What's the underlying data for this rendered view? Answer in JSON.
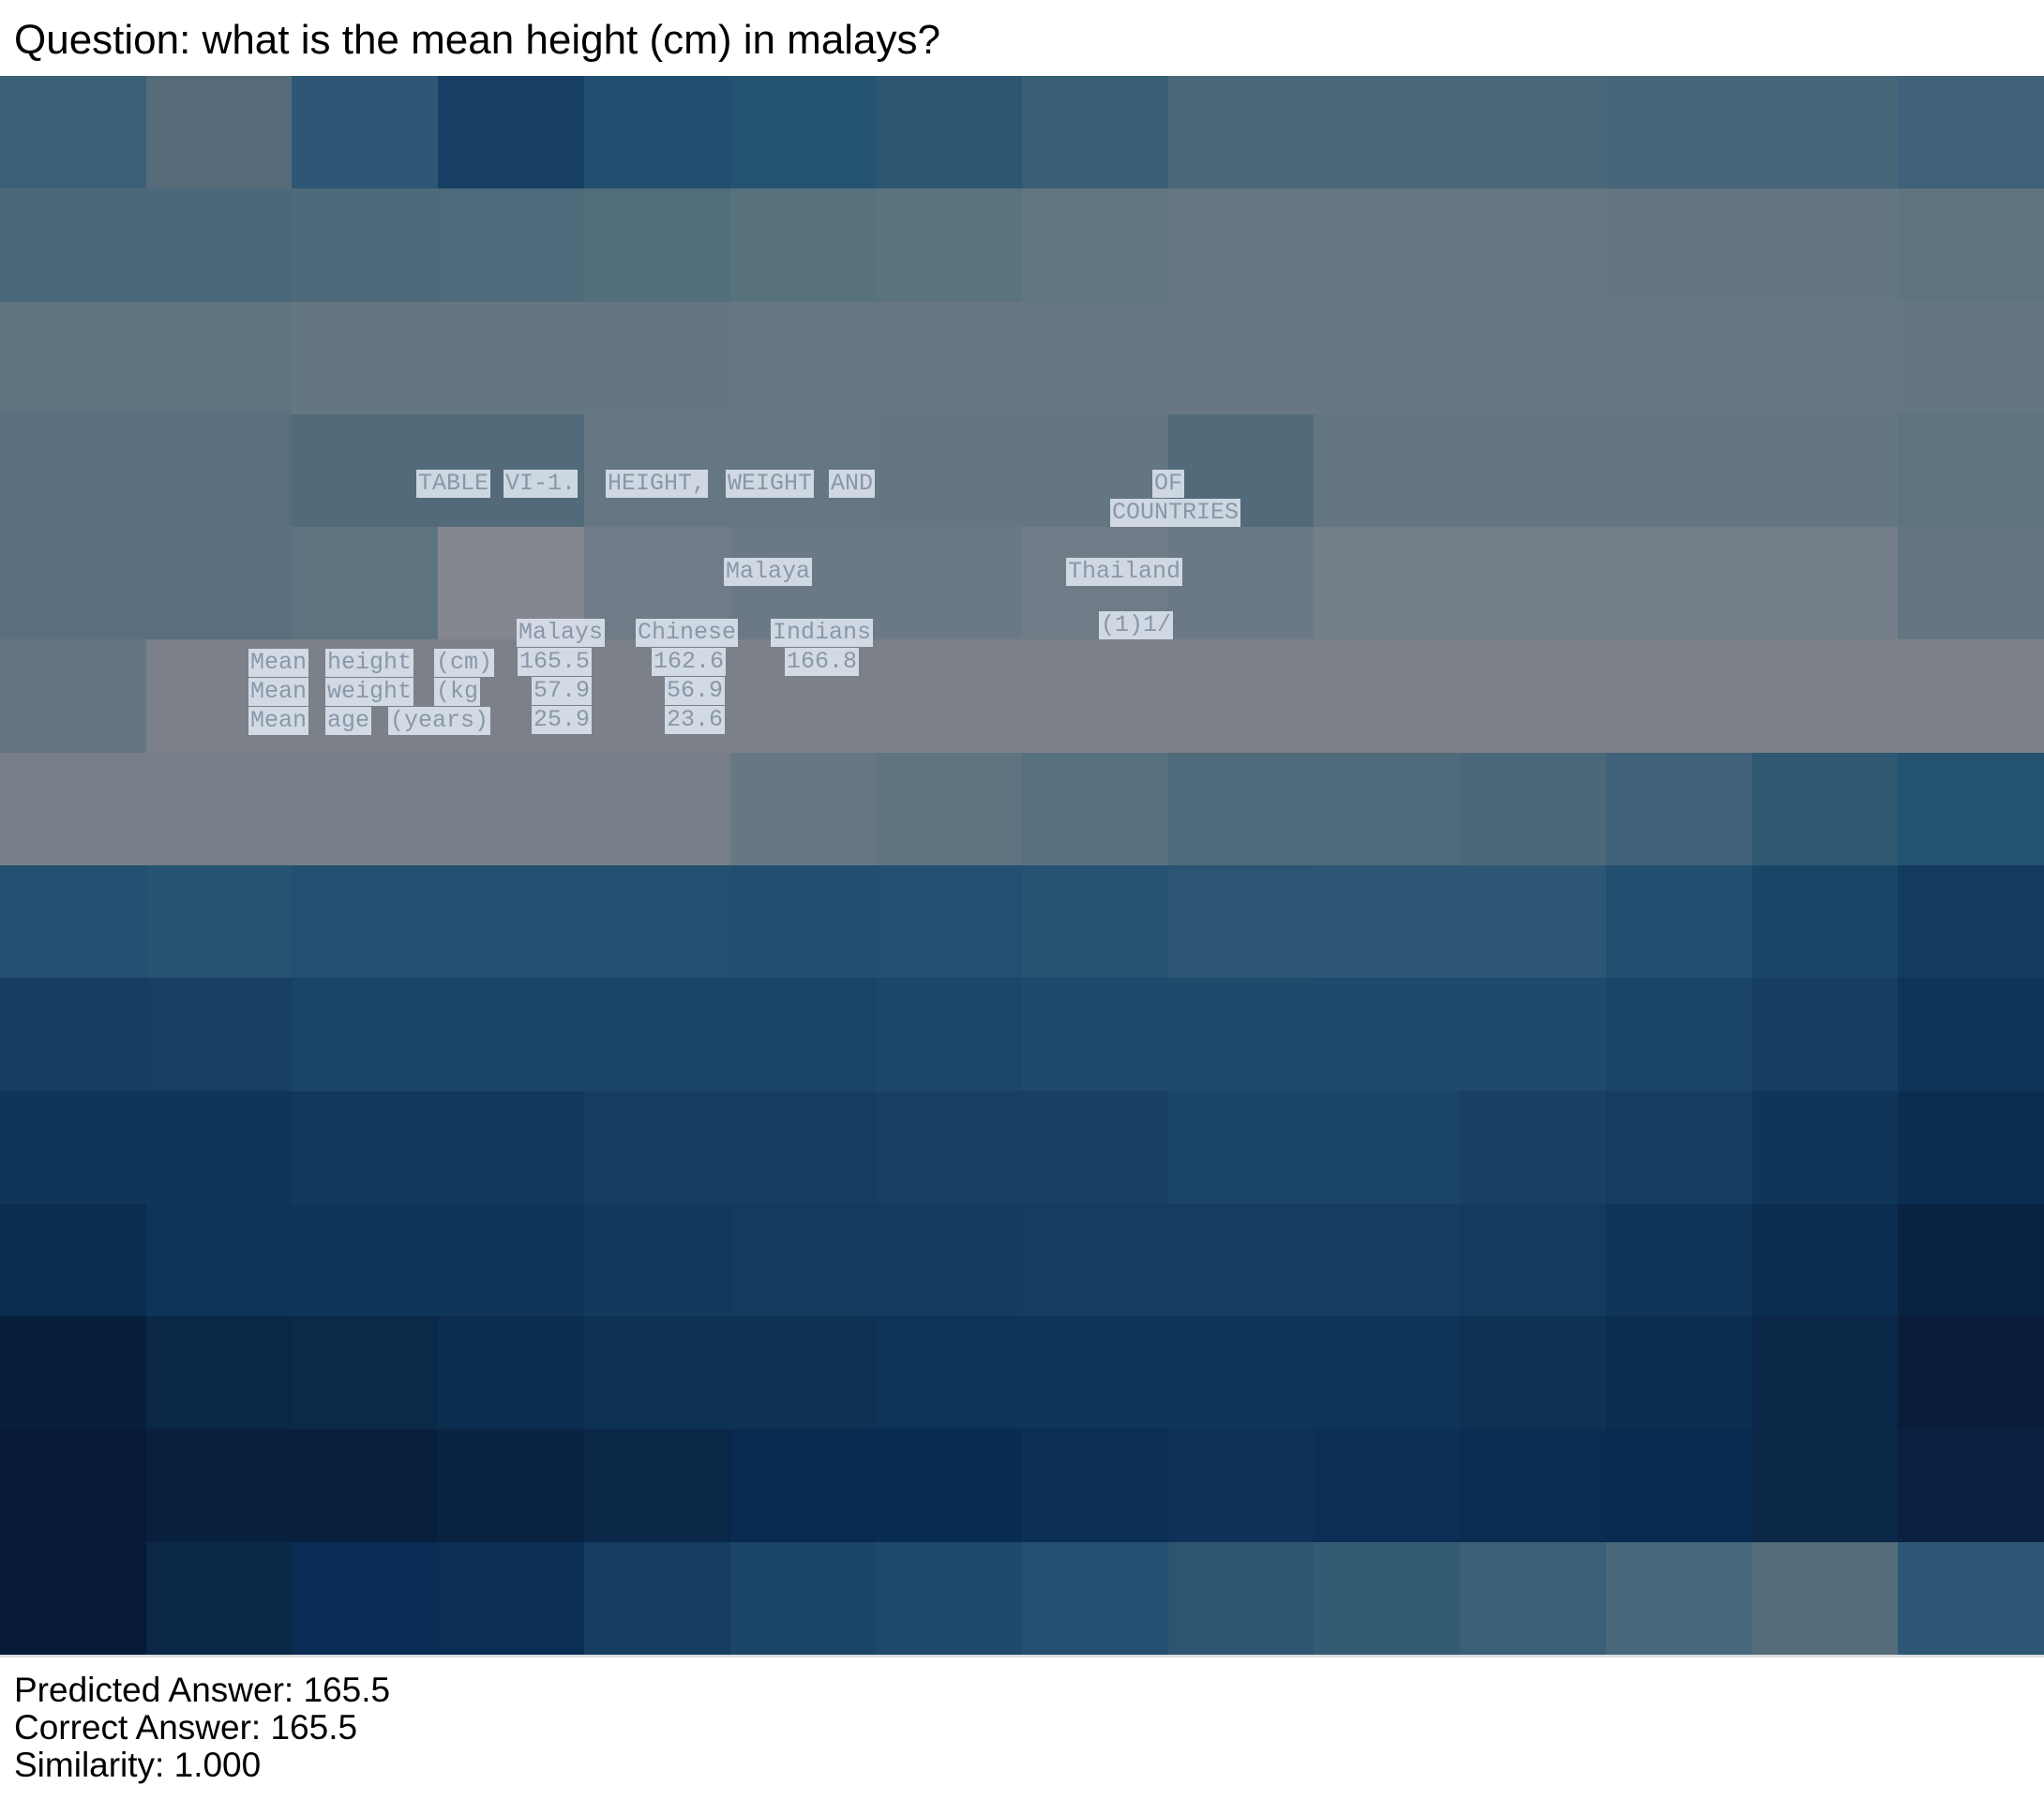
{
  "question": "Question: what is the mean height (cm) in malays?",
  "document": {
    "title_words": [
      "TABLE",
      "VI-1.",
      "HEIGHT,",
      "WEIGHT",
      "AND"
    ],
    "title_right": [
      "OF",
      "COUNTRIES"
    ],
    "malaya_label": "Malaya",
    "thailand_label": "Thailand",
    "thailand_note": "(1)1/",
    "col_headers": [
      "Malays",
      "Chinese",
      "Indians"
    ],
    "rows": [
      {
        "label_words": [
          "Mean",
          "height",
          "(cm)"
        ],
        "values": [
          "165.5",
          "162.6",
          "166.8"
        ]
      },
      {
        "label_words": [
          "Mean",
          "weight",
          "(kg"
        ],
        "values": [
          "57.9",
          "56.9"
        ]
      },
      {
        "label_words": [
          "Mean",
          "age",
          "(years)"
        ],
        "values": [
          "25.9",
          "23.6"
        ]
      }
    ]
  },
  "attention_grid": {
    "rows": 14,
    "cols": 14,
    "colors": [
      [
        "#3b5f77",
        "#566b79",
        "#2d5775",
        "#173e63",
        "#224f70",
        "#245271",
        "#2d5670",
        "#385f75",
        "#4a6879",
        "#4a6879",
        "#4a6879",
        "#46667a",
        "#46667a",
        "#3f6179"
      ],
      [
        "#4a6879",
        "#4a6879",
        "#4e6a7a",
        "#4f6b7b",
        "#526e7b",
        "#57717d",
        "#5b737f",
        "#627681",
        "#667783",
        "#667783",
        "#667783",
        "#637682",
        "#637682",
        "#5f7480"
      ],
      [
        "#5e7380",
        "#5e7380",
        "#637682",
        "#637682",
        "#637682",
        "#667783",
        "#667783",
        "#667783",
        "#687883",
        "#687883",
        "#687883",
        "#667783",
        "#667783",
        "#637682"
      ],
      [
        "#5a6f7d",
        "#5a6f7d",
        "#526a79",
        "#526a79",
        "#667783",
        "#667783",
        "#637682",
        "#637682",
        "#526a79",
        "#637682",
        "#637682",
        "#637682",
        "#637682",
        "#5e7380"
      ],
      [
        "#5a6f7d",
        "#5a6f7d",
        "#5e7380",
        "#848790",
        "#6f7b86",
        "#6a7985",
        "#6a7985",
        "#6f7b86",
        "#6a7985",
        "#737e88",
        "#737e88",
        "#737e88",
        "#737e88",
        "#637682"
      ],
      [
        "#637682",
        "#7b8089",
        "#7b8089",
        "#7b8089",
        "#7b8089",
        "#7b8089",
        "#7b8089",
        "#7b8089",
        "#7b8089",
        "#7b8089",
        "#7b8089",
        "#7b8089",
        "#7b8089",
        "#7b8089"
      ],
      [
        "#787f89",
        "#787f89",
        "#787f89",
        "#787f89",
        "#787f89",
        "#687883",
        "#5f7480",
        "#577080",
        "#4f6b7b",
        "#4f6b7b",
        "#4a6879",
        "#3f6179",
        "#2f5873",
        "#245271"
      ],
      [
        "#234f70",
        "#265372",
        "#234f70",
        "#234f70",
        "#234f70",
        "#224f70",
        "#234f70",
        "#265372",
        "#2b5573",
        "#2d5775",
        "#2d5775",
        "#224f70",
        "#1b4567",
        "#123b5e"
      ],
      [
        "#143d60",
        "#173f62",
        "#1b4567",
        "#1b4567",
        "#1b4567",
        "#1b4567",
        "#1d4769",
        "#1f4a6b",
        "#1f4a6b",
        "#1f4a6b",
        "#1f4a6b",
        "#1b4567",
        "#163e61",
        "#0e3457"
      ],
      [
        "#0f3658",
        "#0f3658",
        "#123a5c",
        "#123a5c",
        "#153d5f",
        "#153d5f",
        "#173f62",
        "#193f63",
        "#1b4567",
        "#1b4567",
        "#193f63",
        "#143d60",
        "#0f3658",
        "#0b2e50"
      ],
      [
        "#0b2d4f",
        "#0e3457",
        "#0f3658",
        "#0f3658",
        "#11395b",
        "#133b5d",
        "#133b5d",
        "#153d5f",
        "#153d5f",
        "#153d5f",
        "#133b5d",
        "#0e3457",
        "#0b2e50",
        "#0a2343"
      ],
      [
        "#071f3d",
        "#0a2747",
        "#0b2a4a",
        "#0b2d4f",
        "#0d3254",
        "#0d3254",
        "#0e3457",
        "#0f3658",
        "#0f3658",
        "#0e3457",
        "#0d3254",
        "#0b2e50",
        "#0a2747",
        "#091d3a"
      ],
      [
        "#061a35",
        "#081f3d",
        "#081f3d",
        "#0a2343",
        "#0a2747",
        "#082a4f",
        "#082b51",
        "#0b2e55",
        "#0d3157",
        "#0b2e55",
        "#0a2c50",
        "#082a4f",
        "#0a2747",
        "#0b2142"
      ],
      [
        "#061a35",
        "#0a2747",
        "#0b2d55",
        "#0b2e55",
        "#143d60",
        "#1b4567",
        "#1f4a6b",
        "#234f70",
        "#2d5570",
        "#335b73",
        "#3a5f77",
        "#48677a",
        "#546c79",
        "#2d5775"
      ]
    ]
  },
  "footer": {
    "predicted": "Predicted Answer: 165.5",
    "correct": "Correct Answer: 165.5",
    "similarity": "Similarity: 1.000"
  }
}
